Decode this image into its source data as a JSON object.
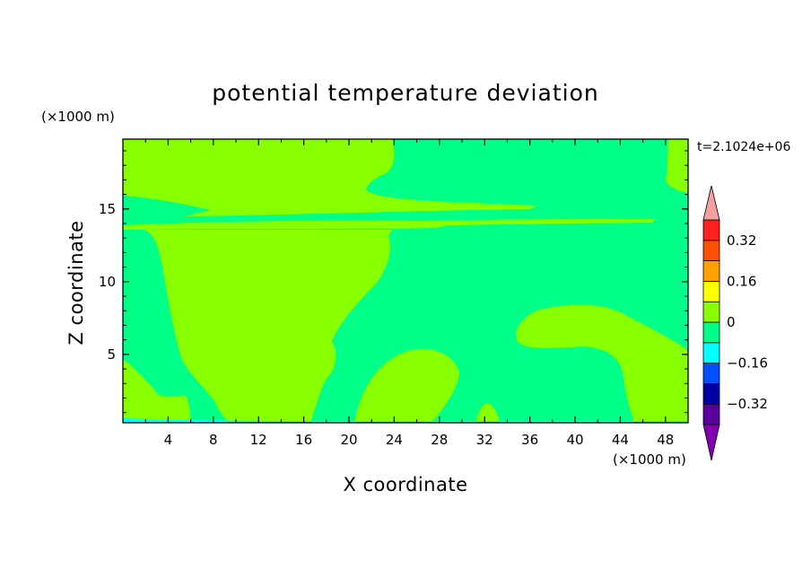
{
  "chart_data": {
    "type": "contour",
    "title": "potential temperature deviation",
    "xlabel": "X coordinate",
    "ylabel": "Z coordinate",
    "x_unit": "(×1000 m)",
    "y_unit": "(×1000 m)",
    "time_label": "t=2.1024e+06",
    "xlim": [
      0,
      50
    ],
    "ylim": [
      0.3,
      19.8
    ],
    "x_ticks": [
      4,
      8,
      12,
      16,
      20,
      24,
      28,
      32,
      36,
      40,
      44,
      48
    ],
    "y_ticks": [
      5,
      10,
      15
    ],
    "colorbar": {
      "levels": [
        -0.4,
        -0.32,
        -0.24,
        -0.16,
        -0.08,
        0,
        0.08,
        0.16,
        0.24,
        0.32,
        0.4
      ],
      "tick_labels": [
        "0.32",
        "0.16",
        "0",
        "−0.16",
        "−0.32"
      ],
      "tick_values": [
        0.32,
        0.16,
        0,
        -0.16,
        -0.32
      ],
      "colors_bottom_to_top": [
        "#5a00a0",
        "#0000a0",
        "#0050ff",
        "#00ffff",
        "#00ff88",
        "#88ff00",
        "#ffff00",
        "#ffa000",
        "#ff5000",
        "#ff2020"
      ],
      "under_color": "#8000b0",
      "over_color": "#f4a0a0"
    },
    "field_colors": {
      "negative_band": "#00ff88",
      "positive_band": "#88ff00",
      "weak_negative": "#00ffff"
    }
  }
}
